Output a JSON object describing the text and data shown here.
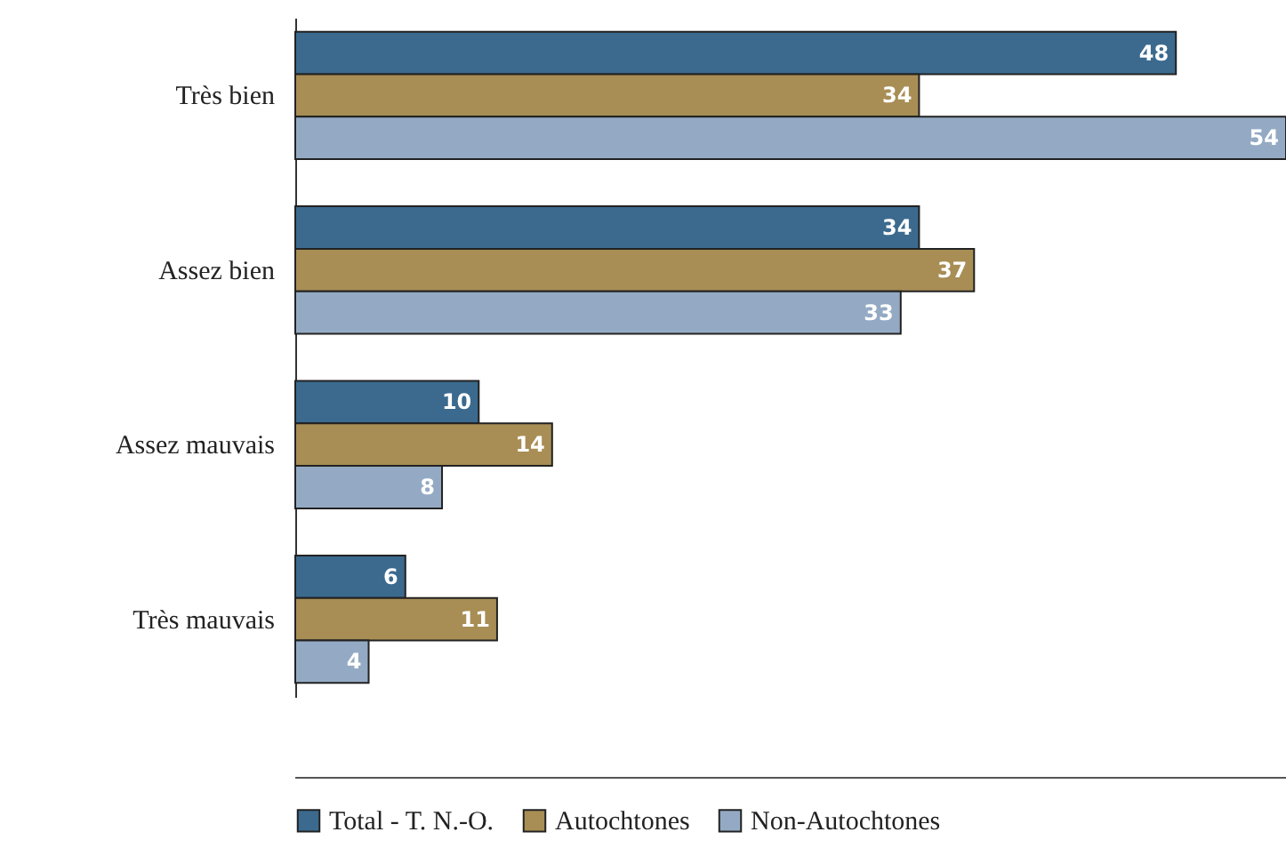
{
  "chart_data": {
    "type": "bar",
    "orientation": "horizontal",
    "categories": [
      "Très bien",
      "Assez bien",
      "Assez mauvais",
      "Très mauvais"
    ],
    "series": [
      {
        "name": "Total - T. N.-O.",
        "color": "#3b6a8e",
        "values": [
          48,
          34,
          10,
          6
        ]
      },
      {
        "name": "Autochtones",
        "color": "#a88e55",
        "values": [
          34,
          37,
          14,
          11
        ]
      },
      {
        "name": "Non-Autochtones",
        "color": "#94aac4",
        "values": [
          54,
          33,
          8,
          4
        ]
      }
    ],
    "data_labels": true,
    "legend": "bottom",
    "grid": false
  }
}
